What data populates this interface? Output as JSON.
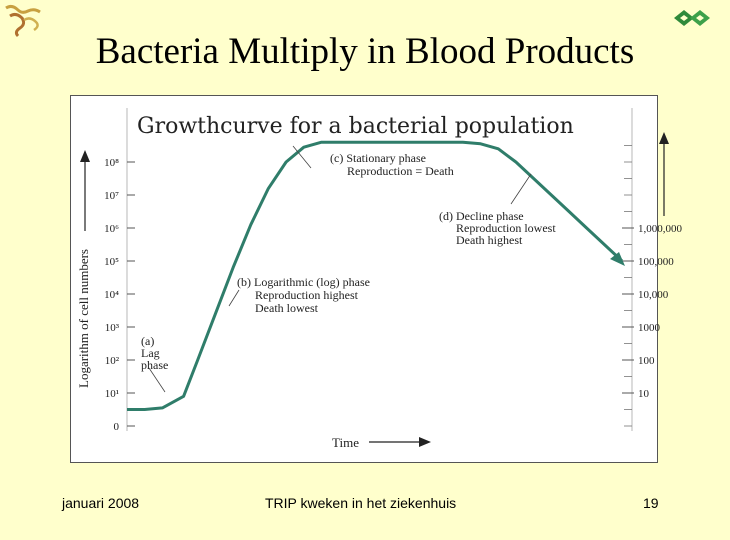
{
  "slide": {
    "title": "Bacteria Multiply in Blood Products",
    "footer": {
      "date": "januari 2008",
      "center": "TRIP kweken in het ziekenhuis",
      "page": "19"
    },
    "logos": {
      "left": "bird-logo-icon",
      "right": "trip-logo-icon"
    }
  },
  "chart_data": {
    "type": "line",
    "title": "Growthcurve for a bacterial population",
    "xlabel": "Time",
    "ylabel": "Logarithm of cell numbers",
    "y_scale": "log",
    "left_axis_ticks": [
      "0",
      "10¹",
      "10²",
      "10³",
      "10⁴",
      "10⁵",
      "10⁶",
      "10⁷",
      "10⁸"
    ],
    "right_axis_ticks": [
      "10",
      "100",
      "1000",
      "10,000",
      "100,000",
      "1,000,000"
    ],
    "grid": false,
    "series": [
      {
        "name": "",
        "x": [
          0,
          0.5,
          1.0,
          1.6,
          2.0,
          2.5,
          3.0,
          3.5,
          4.0,
          4.5,
          5.0,
          5.5,
          6.0,
          6.5,
          7.0,
          7.5,
          8.0,
          8.5,
          9.0,
          9.5,
          10.0,
          10.5,
          11.0,
          11.5,
          12.0,
          12.5,
          13.0,
          13.5,
          14.0
        ],
        "y": [
          0.5,
          0.5,
          0.55,
          0.9,
          2.0,
          3.4,
          4.8,
          6.1,
          7.2,
          8.0,
          8.45,
          8.6,
          8.6,
          8.6,
          8.6,
          8.6,
          8.6,
          8.6,
          8.6,
          8.6,
          8.55,
          8.4,
          8.0,
          7.5,
          7.0,
          6.5,
          6.0,
          5.5,
          5.0
        ]
      }
    ],
    "annotations": [
      {
        "lines": [
          "(a)",
          "Lag",
          "phase"
        ]
      },
      {
        "lines": [
          "(b) Logarithmic (log) phase",
          "Reproduction highest",
          "Death lowest"
        ]
      },
      {
        "lines": [
          "(c) Stationary phase",
          "Reproduction = Death"
        ]
      },
      {
        "lines": [
          "(d) Decline phase",
          "Reproduction lowest",
          "Death highest"
        ]
      }
    ]
  }
}
